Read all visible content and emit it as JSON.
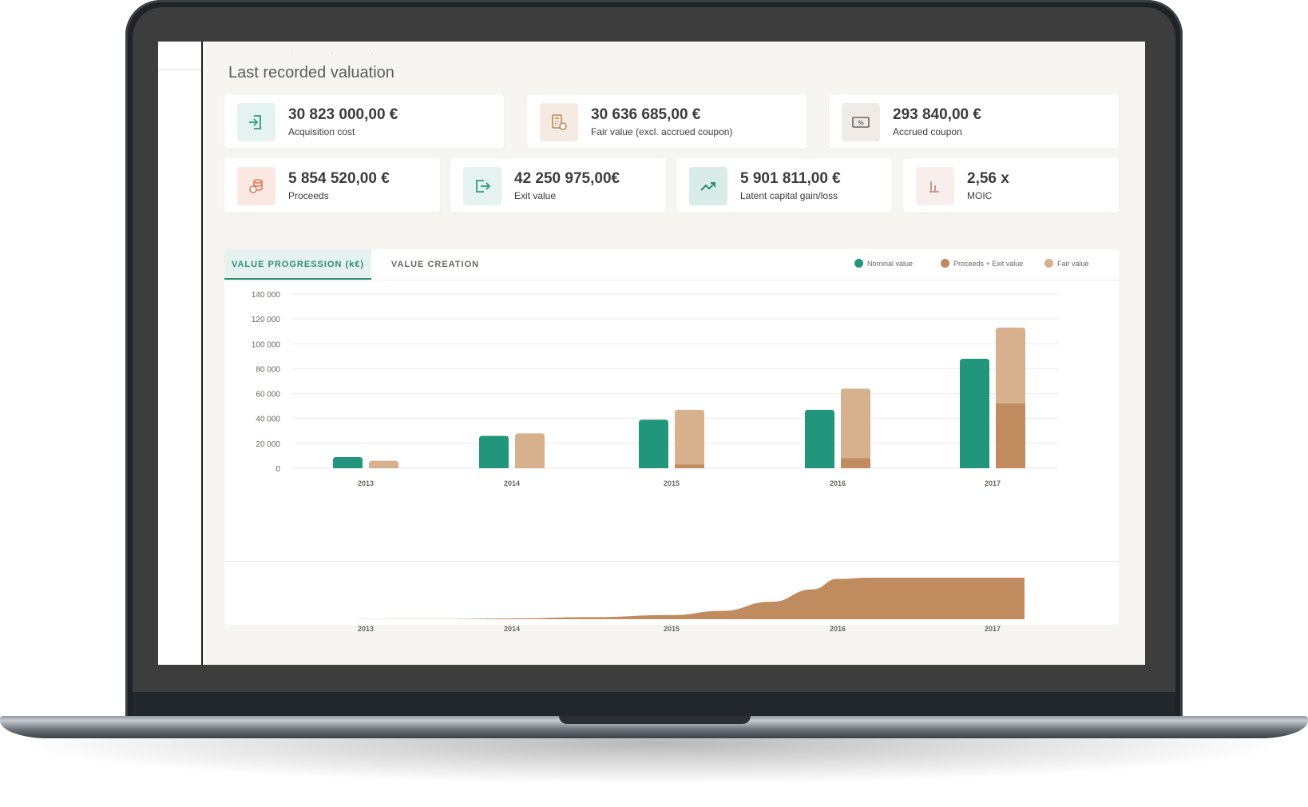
{
  "header": {
    "breadcrumb_dots": "· · ·",
    "section_title": "Last recorded valuation"
  },
  "kpis_row1": [
    {
      "value": "30 823 000,00 €",
      "label": "Acquisition cost",
      "icon": "login-arrow-icon",
      "tile_bg": "#e4f3f0",
      "icon_color": "#2e9a82"
    },
    {
      "value": "30 636 685,00 €",
      "label": "Fair value (excl. accrued coupon)",
      "icon": "calculator-coin-icon",
      "tile_bg": "#f6ebe2",
      "icon_color": "#c48855"
    },
    {
      "value": "293 840,00 €",
      "label": "Accrued coupon",
      "icon": "coupon-ticket-icon",
      "tile_bg": "#efebe7",
      "icon_color": "#6e655d"
    }
  ],
  "kpis_row2": [
    {
      "value": "5 854 520,00 €",
      "label": "Proceeds",
      "icon": "coins-stack-icon",
      "tile_bg": "#fbe8e2",
      "icon_color": "#e07a5c"
    },
    {
      "value": "42 250 975,00€",
      "label": "Exit value",
      "icon": "exit-arrow-icon",
      "tile_bg": "#e4f3f0",
      "icon_color": "#2e9a82"
    },
    {
      "value": "5 901 811,00 €",
      "label": "Latent capital gain/loss",
      "icon": "trend-up-icon",
      "tile_bg": "#d9ece8",
      "icon_color": "#2a8a76"
    },
    {
      "value": "2,56 x",
      "label": "MOIC",
      "icon": "bar-chart-icon",
      "tile_bg": "#f8eeec",
      "icon_color": "#c79a8e"
    }
  ],
  "tabs": {
    "value_progression": "VALUE PROGRESSION (k€)",
    "value_creation": "VALUE CREATION"
  },
  "legend": {
    "nominal": "Nominal value",
    "proceeds_exit": "Proceeds + Exit value",
    "fair": "Fair value"
  },
  "colors": {
    "nominal": "#21967c",
    "proceeds_exit": "#c08b5e",
    "fair": "#d7b08d"
  },
  "chart_data": [
    {
      "type": "bar",
      "categories": [
        "2013",
        "2014",
        "2015",
        "2016",
        "2017"
      ],
      "series": [
        {
          "name": "Nominal value",
          "values": [
            9000,
            26000,
            39000,
            47000,
            88000
          ]
        },
        {
          "name": "Proceeds + Exit value",
          "values": [
            0,
            0,
            3000,
            8000,
            52000
          ]
        },
        {
          "name": "Fair value",
          "values": [
            6000,
            28000,
            44000,
            56000,
            61000
          ]
        }
      ],
      "stacked_series": [
        "Proceeds + Exit value",
        "Fair value"
      ],
      "ylim": [
        0,
        140000
      ],
      "yticks": [
        "0",
        "20 000",
        "40 000",
        "60 000",
        "80 000",
        "100 000",
        "120 000",
        "140 000"
      ],
      "grid": true,
      "legend_position": "top-right"
    },
    {
      "type": "area",
      "x": [
        "2013",
        "2014",
        "2015",
        "2016",
        "2017"
      ],
      "values": [
        0,
        3,
        15,
        100,
        100
      ],
      "series_points": [
        [
          2013.0,
          0
        ],
        [
          2013.5,
          0.5
        ],
        [
          2014.0,
          2
        ],
        [
          2014.5,
          5
        ],
        [
          2015.0,
          10
        ],
        [
          2015.3,
          20
        ],
        [
          2015.6,
          42
        ],
        [
          2015.85,
          72
        ],
        [
          2016.0,
          97
        ],
        [
          2016.2,
          100
        ],
        [
          2017.0,
          100
        ]
      ]
    }
  ]
}
